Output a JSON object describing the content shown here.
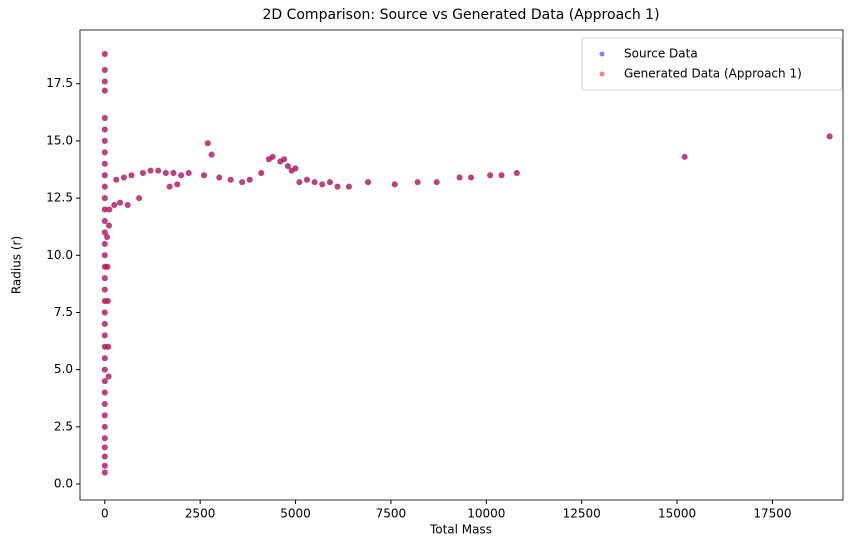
{
  "chart_data": {
    "type": "scatter",
    "title": "2D Comparison: Source vs Generated Data (Approach 1)",
    "xlabel": "Total Mass",
    "ylabel": "Radius (r)",
    "xlim": [
      -650,
      19350
    ],
    "ylim": [
      -0.7,
      19.85
    ],
    "xticks": [
      0,
      2500,
      5000,
      7500,
      10000,
      12500,
      15000,
      17500
    ],
    "yticks": [
      {
        "value": 0,
        "label": "0.0"
      },
      {
        "value": 2.5,
        "label": "2.5"
      },
      {
        "value": 5,
        "label": "5.0"
      },
      {
        "value": 7.5,
        "label": "7.5"
      },
      {
        "value": 10,
        "label": "10.0"
      },
      {
        "value": 12.5,
        "label": "12.5"
      },
      {
        "value": 15,
        "label": "15.0"
      },
      {
        "value": 17.5,
        "label": "17.5"
      }
    ],
    "grid": false,
    "legend": "upper right",
    "series": [
      {
        "name": "Source Data",
        "color": "#0000ff",
        "opacity": 0.5,
        "x": [
          0,
          0,
          0,
          0,
          0,
          0,
          0,
          0,
          0,
          0,
          0,
          0,
          0,
          0,
          0,
          0,
          0,
          0,
          0,
          0,
          0,
          0,
          0,
          0,
          0,
          0,
          0,
          0,
          0,
          0,
          0,
          0,
          0,
          0,
          0,
          0,
          0,
          100,
          90,
          80,
          70,
          60,
          110,
          120,
          250,
          400,
          600,
          900,
          300,
          500,
          700,
          1000,
          1200,
          1400,
          1600,
          1800,
          2000,
          2200,
          1700,
          1900,
          2700,
          2800,
          2600,
          3000,
          3300,
          3600,
          3800,
          4100,
          4300,
          4400,
          4600,
          4700,
          4800,
          4900,
          5000,
          5100,
          5300,
          5500,
          5700,
          5900,
          6100,
          6400,
          6900,
          7600,
          8200,
          8700,
          9300,
          9600,
          10100,
          10400,
          10800,
          15200,
          19000
        ],
        "values": [
          0.5,
          0.8,
          1.2,
          1.6,
          2.0,
          2.5,
          3.0,
          3.5,
          4.0,
          4.5,
          5.0,
          5.5,
          6.0,
          6.5,
          7.0,
          7.5,
          8.0,
          8.5,
          9.0,
          9.5,
          10.0,
          10.5,
          11.0,
          11.5,
          12.0,
          12.5,
          13.0,
          13.5,
          14.0,
          14.5,
          15.0,
          15.5,
          16.0,
          17.2,
          17.6,
          18.1,
          18.8,
          4.7,
          6.0,
          8.0,
          9.5,
          10.8,
          11.3,
          12.0,
          12.2,
          12.3,
          12.2,
          12.5,
          13.3,
          13.4,
          13.5,
          13.6,
          13.7,
          13.7,
          13.6,
          13.6,
          13.5,
          13.6,
          13.0,
          13.1,
          14.9,
          14.4,
          13.5,
          13.4,
          13.3,
          13.2,
          13.3,
          13.6,
          14.2,
          14.3,
          14.1,
          14.2,
          13.9,
          13.7,
          13.8,
          13.2,
          13.3,
          13.2,
          13.1,
          13.2,
          13.0,
          13.0,
          13.2,
          13.1,
          13.2,
          13.2,
          13.4,
          13.4,
          13.5,
          13.5,
          13.6,
          14.3,
          15.2
        ]
      },
      {
        "name": "Generated Data (Approach 1)",
        "color": "#ff0000",
        "opacity": 0.5,
        "x": [
          0,
          0,
          0,
          0,
          0,
          0,
          0,
          0,
          0,
          0,
          0,
          0,
          0,
          0,
          0,
          0,
          0,
          0,
          0,
          0,
          0,
          0,
          0,
          0,
          0,
          0,
          0,
          0,
          0,
          0,
          0,
          0,
          0,
          0,
          0,
          0,
          0,
          100,
          90,
          80,
          70,
          60,
          110,
          120,
          250,
          400,
          600,
          900,
          300,
          500,
          700,
          1000,
          1200,
          1400,
          1600,
          1800,
          2000,
          2200,
          1700,
          1900,
          2700,
          2800,
          2600,
          3000,
          3300,
          3600,
          3800,
          4100,
          4300,
          4400,
          4600,
          4700,
          4800,
          4900,
          5000,
          5100,
          5300,
          5500,
          5700,
          5900,
          6100,
          6400,
          6900,
          7600,
          8200,
          8700,
          9300,
          9600,
          10100,
          10400,
          10800,
          15200,
          19000
        ],
        "values": [
          0.5,
          0.8,
          1.2,
          1.6,
          2.0,
          2.5,
          3.0,
          3.5,
          4.0,
          4.5,
          5.0,
          5.5,
          6.0,
          6.5,
          7.0,
          7.5,
          8.0,
          8.5,
          9.0,
          9.5,
          10.0,
          10.5,
          11.0,
          11.5,
          12.0,
          12.5,
          13.0,
          13.5,
          14.0,
          14.5,
          15.0,
          15.5,
          16.0,
          17.2,
          17.6,
          18.1,
          18.8,
          4.7,
          6.0,
          8.0,
          9.5,
          10.8,
          11.3,
          12.0,
          12.2,
          12.3,
          12.2,
          12.5,
          13.3,
          13.4,
          13.5,
          13.6,
          13.7,
          13.7,
          13.6,
          13.6,
          13.5,
          13.6,
          13.0,
          13.1,
          14.9,
          14.4,
          13.5,
          13.4,
          13.3,
          13.2,
          13.3,
          13.6,
          14.2,
          14.3,
          14.1,
          14.2,
          13.9,
          13.7,
          13.8,
          13.2,
          13.3,
          13.2,
          13.1,
          13.2,
          13.0,
          13.0,
          13.2,
          13.1,
          13.2,
          13.2,
          13.4,
          13.4,
          13.5,
          13.5,
          13.6,
          14.3,
          15.2
        ]
      }
    ]
  }
}
